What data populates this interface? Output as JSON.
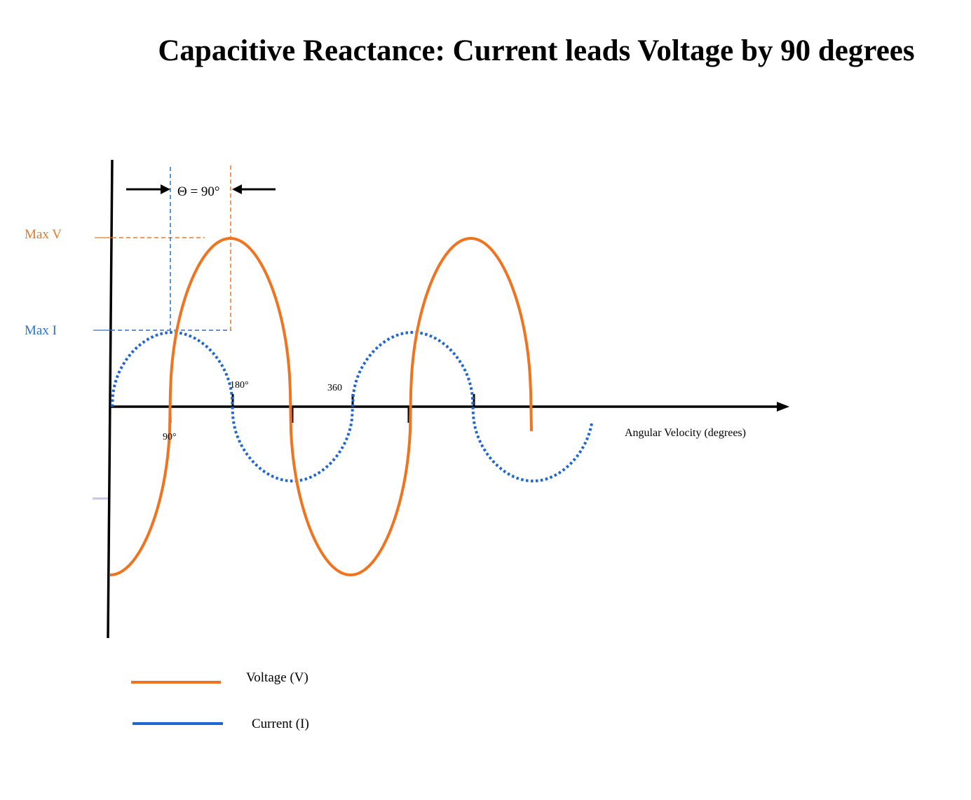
{
  "title": "Capacitive Reactance: Current leads Voltage by 90 degrees",
  "labels": {
    "max_v": "Max V",
    "max_i": "Max I",
    "theta": "Θ = 90°",
    "tick_90": "90°",
    "tick_180": "180°",
    "tick_360": "360",
    "x_axis": "Angular Velocity (degrees)"
  },
  "legend": [
    {
      "label": "Voltage (V)",
      "color": "#f07420",
      "style": "solid"
    },
    {
      "label": "Current (I)",
      "color": "#1f66d1",
      "style": "solid"
    }
  ],
  "colors": {
    "voltage": "#f07420",
    "current": "#1f66d1",
    "max_v_text": "#e07a2e",
    "max_i_text": "#2a73c4",
    "axis": "#000000"
  }
}
